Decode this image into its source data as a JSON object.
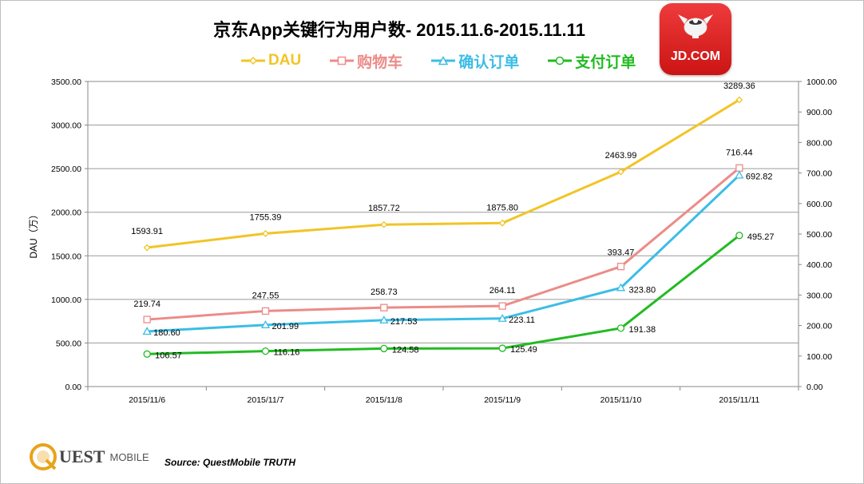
{
  "page": {
    "title": "京东App关键行为用户数- 2015.11.6-2015.11.11",
    "source": "Source: QuestMobile TRUTH",
    "logo_text": "JD.COM",
    "footer_brand": "UEST",
    "footer_brand_sub": "MOBILE"
  },
  "chart_data": {
    "type": "line",
    "title": "京东App关键行为用户数- 2015.11.6-2015.11.11",
    "categories": [
      "2015/11/6",
      "2015/11/7",
      "2015/11/8",
      "2015/11/9",
      "2015/11/10",
      "2015/11/11"
    ],
    "ylabel": "DAU（万）",
    "ylim": [
      0,
      3500
    ],
    "y_ticks": [
      "0.00",
      "500.00",
      "1000.00",
      "1500.00",
      "2000.00",
      "2500.00",
      "3000.00",
      "3500.00"
    ],
    "y2lim": [
      0,
      1000
    ],
    "y2_ticks": [
      "0.00",
      "100.00",
      "200.00",
      "300.00",
      "400.00",
      "500.00",
      "600.00",
      "700.00",
      "800.00",
      "900.00",
      "1000.00"
    ],
    "grid": true,
    "legend_position": "top",
    "series": [
      {
        "name": "DAU",
        "axis": "left",
        "color": "#f2c426",
        "marker": "diamond",
        "values": [
          1593.91,
          1755.39,
          1857.72,
          1875.8,
          2463.99,
          3289.36
        ],
        "labels": [
          "1593.91",
          "1755.39",
          "1857.72",
          "1875.80",
          "2463.99",
          "3289.36"
        ]
      },
      {
        "name": "购物车",
        "axis": "right",
        "color": "#eb8c88",
        "marker": "square",
        "values": [
          219.74,
          247.55,
          258.73,
          264.11,
          393.47,
          716.44
        ],
        "labels": [
          "219.74",
          "247.55",
          "258.73",
          "264.11",
          "393.47",
          "716.44"
        ]
      },
      {
        "name": "确认订单",
        "axis": "right",
        "color": "#3bbde6",
        "marker": "triangle",
        "values": [
          180.6,
          201.99,
          217.53,
          223.11,
          323.8,
          692.82
        ],
        "labels": [
          "180.60",
          "201.99",
          "217.53",
          "223.11",
          "323.80",
          "692.82"
        ]
      },
      {
        "name": "支付订单",
        "axis": "right",
        "color": "#22bb22",
        "marker": "circle",
        "values": [
          106.57,
          116.16,
          124.58,
          125.49,
          191.38,
          495.27
        ],
        "labels": [
          "106.57",
          "116.16",
          "124.58",
          "125.49",
          "191.38",
          "495.27"
        ]
      }
    ]
  }
}
